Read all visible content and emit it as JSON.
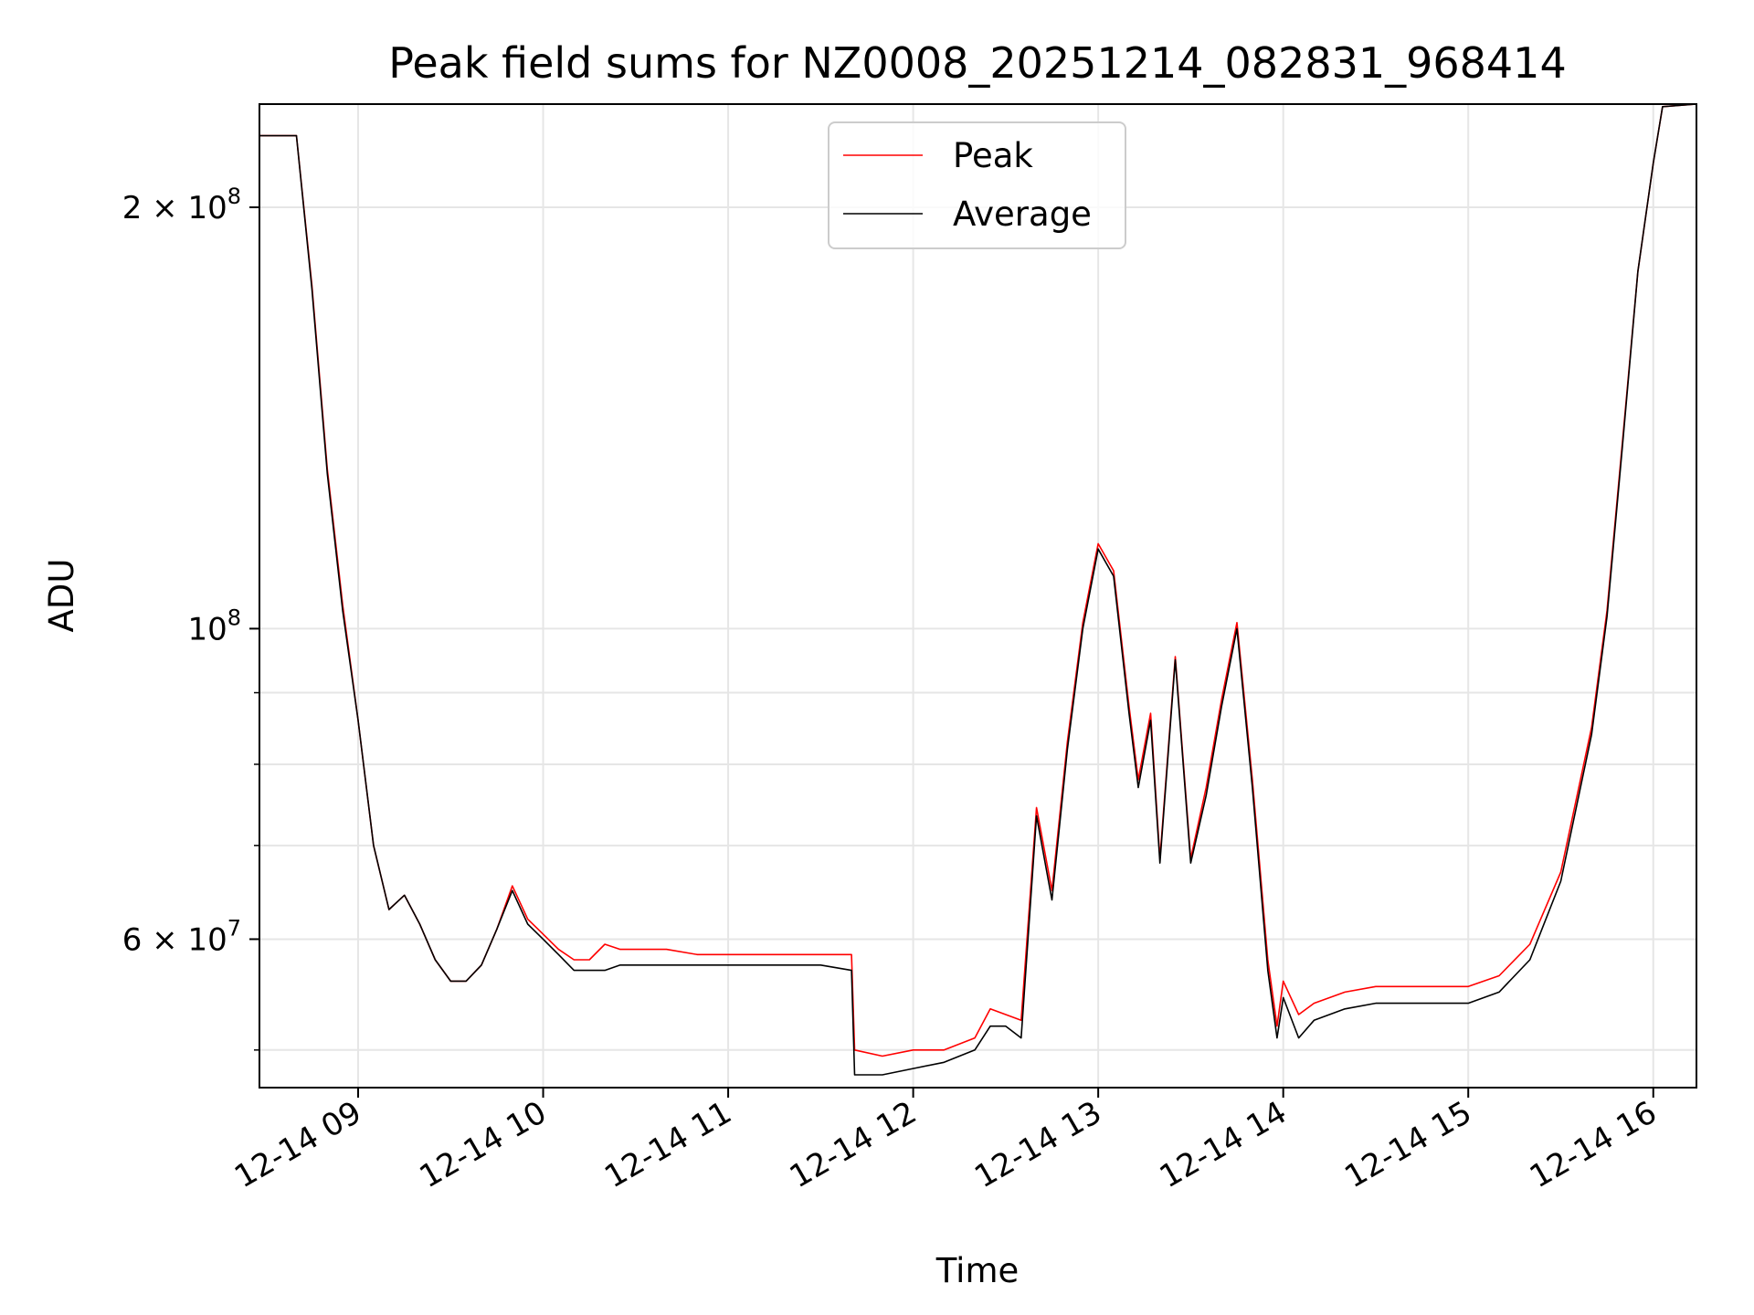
{
  "chart_data": {
    "type": "line",
    "title": "Peak field sums for NZ0008_20251214_082831_968414",
    "xlabel": "Time",
    "ylabel": "ADU",
    "yscale": "log",
    "ylim": [
      47000000,
      237000000
    ],
    "xlim": [
      "2025-12-14 08:28",
      "2025-12-14 16:14"
    ],
    "grid": true,
    "legend_position": "top-center",
    "x_ticks": [
      "12-14 09",
      "12-14 10",
      "12-14 11",
      "12-14 12",
      "12-14 13",
      "12-14 14",
      "12-14 15",
      "12-14 16"
    ],
    "y_tick_labels": [
      {
        "value": 200000000,
        "mantissa": "2",
        "exponent": "8"
      },
      {
        "value": 100000000,
        "mantissa": "",
        "exponent": "8"
      },
      {
        "value": 60000000,
        "mantissa": "6",
        "exponent": "7"
      }
    ],
    "y_minor_ticks": [
      50000000,
      70000000,
      80000000,
      90000000
    ],
    "x": [
      "2025-12-14 08:28",
      "2025-12-14 08:40",
      "2025-12-14 08:45",
      "2025-12-14 08:50",
      "2025-12-14 08:55",
      "2025-12-14 09:00",
      "2025-12-14 09:05",
      "2025-12-14 09:10",
      "2025-12-14 09:15",
      "2025-12-14 09:20",
      "2025-12-14 09:25",
      "2025-12-14 09:30",
      "2025-12-14 09:35",
      "2025-12-14 09:40",
      "2025-12-14 09:45",
      "2025-12-14 09:50",
      "2025-12-14 09:55",
      "2025-12-14 10:00",
      "2025-12-14 10:05",
      "2025-12-14 10:10",
      "2025-12-14 10:15",
      "2025-12-14 10:20",
      "2025-12-14 10:25",
      "2025-12-14 10:30",
      "2025-12-14 10:35",
      "2025-12-14 10:40",
      "2025-12-14 10:50",
      "2025-12-14 11:00",
      "2025-12-14 11:10",
      "2025-12-14 11:20",
      "2025-12-14 11:30",
      "2025-12-14 11:40",
      "2025-12-14 11:41",
      "2025-12-14 11:50",
      "2025-12-14 12:00",
      "2025-12-14 12:10",
      "2025-12-14 12:20",
      "2025-12-14 12:25",
      "2025-12-14 12:30",
      "2025-12-14 12:35",
      "2025-12-14 12:40",
      "2025-12-14 12:45",
      "2025-12-14 12:50",
      "2025-12-14 12:55",
      "2025-12-14 13:00",
      "2025-12-14 13:05",
      "2025-12-14 13:10",
      "2025-12-14 13:13",
      "2025-12-14 13:17",
      "2025-12-14 13:20",
      "2025-12-14 13:25",
      "2025-12-14 13:30",
      "2025-12-14 13:35",
      "2025-12-14 13:40",
      "2025-12-14 13:45",
      "2025-12-14 13:50",
      "2025-12-14 13:55",
      "2025-12-14 13:58",
      "2025-12-14 14:00",
      "2025-12-14 14:05",
      "2025-12-14 14:10",
      "2025-12-14 14:20",
      "2025-12-14 14:30",
      "2025-12-14 14:45",
      "2025-12-14 15:00",
      "2025-12-14 15:10",
      "2025-12-14 15:20",
      "2025-12-14 15:30",
      "2025-12-14 15:40",
      "2025-12-14 15:45",
      "2025-12-14 15:50",
      "2025-12-14 15:55",
      "2025-12-14 16:00",
      "2025-12-14 16:03",
      "2025-12-14 16:14"
    ],
    "series": [
      {
        "name": "Peak",
        "color": "#ff0000",
        "values": [
          225000000,
          225000000,
          176000000,
          130000000,
          104000000,
          86000000,
          70000000,
          63000000,
          64500000,
          61500000,
          58000000,
          56000000,
          56000000,
          57500000,
          61000000,
          65500000,
          62000000,
          60500000,
          59000000,
          58000000,
          58000000,
          59500000,
          59000000,
          59000000,
          59000000,
          59000000,
          58500000,
          58500000,
          58500000,
          58500000,
          58500000,
          58500000,
          50000000,
          49500000,
          50000000,
          50000000,
          51000000,
          53500000,
          53000000,
          52500000,
          74500000,
          65000000,
          83000000,
          101000000,
          115000000,
          110000000,
          88000000,
          78000000,
          87000000,
          68500000,
          95500000,
          68500000,
          77000000,
          89000000,
          101000000,
          78000000,
          58000000,
          52000000,
          56000000,
          53000000,
          54000000,
          55000000,
          55500000,
          55500000,
          55500000,
          56500000,
          59500000,
          67000000,
          85000000,
          103000000,
          136000000,
          180000000,
          215000000,
          236000000,
          237000000
        ]
      },
      {
        "name": "Average",
        "color": "#000000",
        "values": [
          225000000,
          225000000,
          175000000,
          129000000,
          103000000,
          86000000,
          70000000,
          63000000,
          64500000,
          61500000,
          58000000,
          56000000,
          56000000,
          57500000,
          61000000,
          65000000,
          61500000,
          60000000,
          58500000,
          57000000,
          57000000,
          57000000,
          57500000,
          57500000,
          57500000,
          57500000,
          57500000,
          57500000,
          57500000,
          57500000,
          57500000,
          57000000,
          48000000,
          48000000,
          48500000,
          49000000,
          50000000,
          52000000,
          52000000,
          51000000,
          73500000,
          64000000,
          82000000,
          100000000,
          114000000,
          109000000,
          87000000,
          77000000,
          86000000,
          68000000,
          95000000,
          68000000,
          76000000,
          88000000,
          100000000,
          77000000,
          57000000,
          51000000,
          54500000,
          51000000,
          52500000,
          53500000,
          54000000,
          54000000,
          54000000,
          55000000,
          58000000,
          66000000,
          84000000,
          102000000,
          135000000,
          180000000,
          215000000,
          236000000,
          237000000
        ]
      }
    ]
  }
}
